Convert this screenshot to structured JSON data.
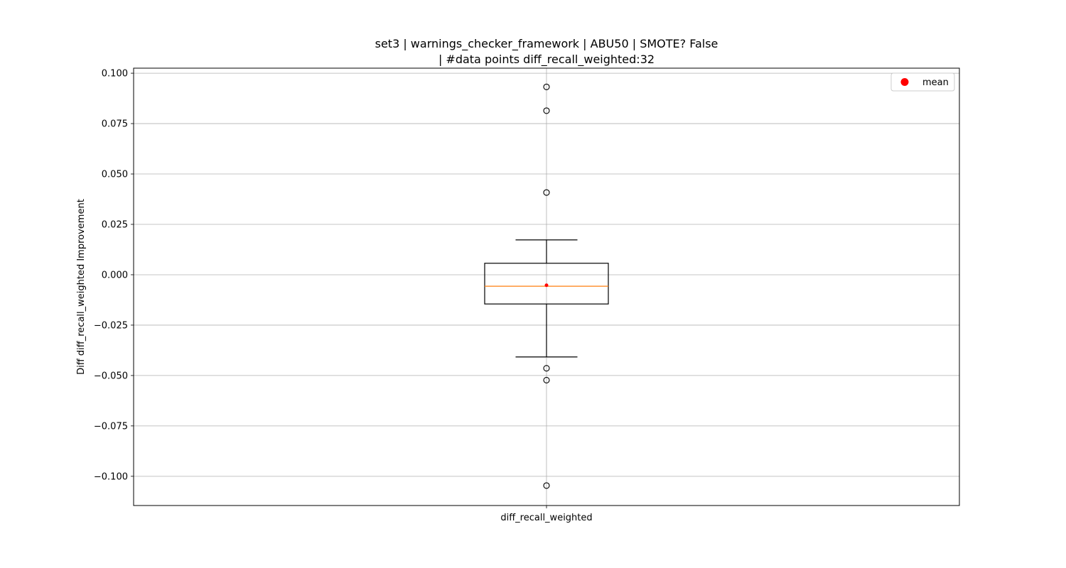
{
  "chart_data": {
    "type": "boxplot",
    "title_line1": "set3 | warnings_checker_framework | ABU50 | SMOTE? False",
    "title_line2": "| #data points diff_recall_weighted:32",
    "xlabel": "",
    "ylabel": "Diff diff_recall_weighted Improvement",
    "categories": [
      "diff_recall_weighted"
    ],
    "ylim": [
      -0.1145,
      0.1025
    ],
    "yticks": [
      0.1,
      0.075,
      0.05,
      0.025,
      0.0,
      -0.025,
      -0.05,
      -0.075,
      -0.1
    ],
    "ytick_labels": [
      "0.100",
      "0.075",
      "0.050",
      "0.025",
      "0.000",
      "−0.025",
      "−0.050",
      "−0.075",
      "−0.100"
    ],
    "grid": true,
    "legend": {
      "position": "top-right",
      "entries": [
        {
          "label": "mean",
          "color": "#ff0000"
        }
      ]
    },
    "box": {
      "whisker_high": 0.0173,
      "q3": 0.0057,
      "median": -0.0057,
      "q1": -0.0145,
      "whisker_low": -0.0408,
      "mean": -0.0052,
      "outliers": [
        0.0932,
        0.0814,
        0.0408,
        -0.0464,
        -0.0523,
        -0.1046
      ]
    },
    "colors": {
      "median": "#ff7f0e",
      "mean": "#ff0000",
      "grid": "#b0b0b0",
      "box": "#000000"
    }
  }
}
